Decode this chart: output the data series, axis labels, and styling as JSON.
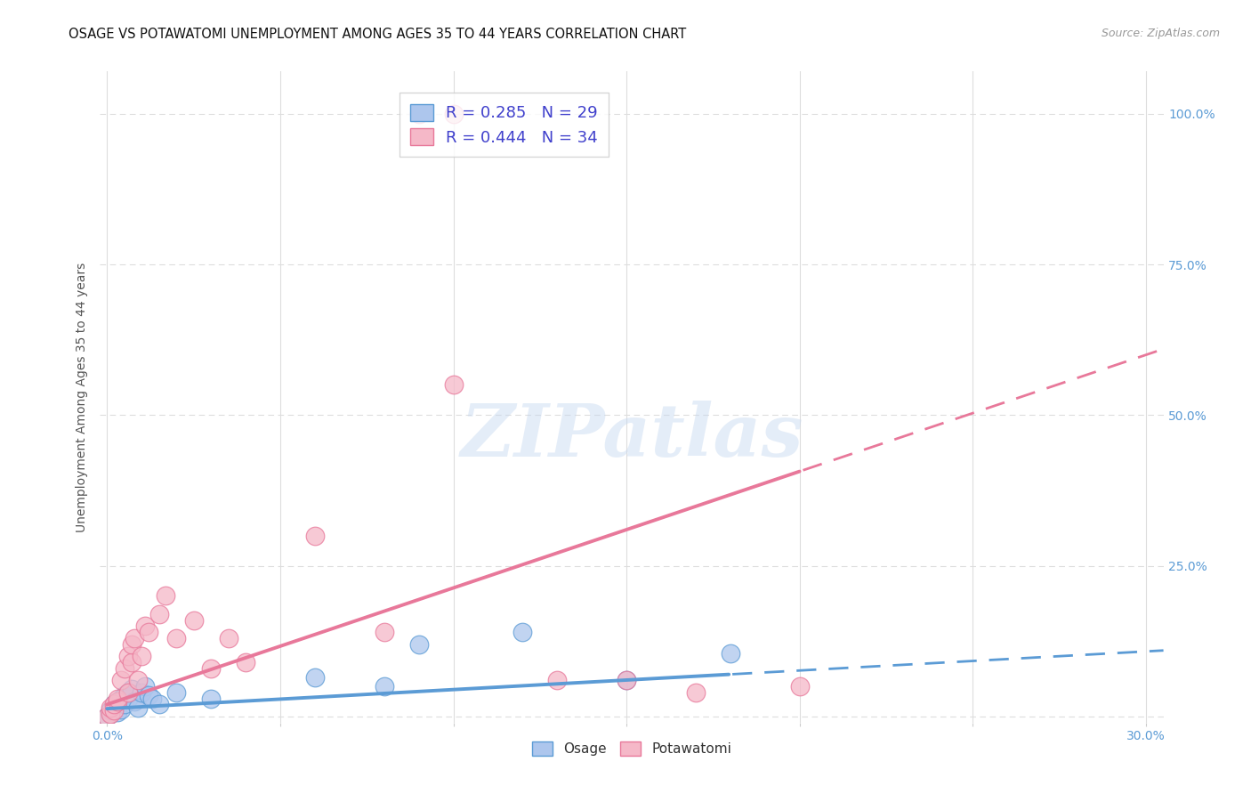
{
  "title": "OSAGE VS POTAWATOMI UNEMPLOYMENT AMONG AGES 35 TO 44 YEARS CORRELATION CHART",
  "source": "Source: ZipAtlas.com",
  "ylabel": "Unemployment Among Ages 35 to 44 years",
  "xlim": [
    -0.002,
    0.305
  ],
  "ylim": [
    -0.01,
    1.07
  ],
  "xticks": [
    0.0,
    0.05,
    0.1,
    0.15,
    0.2,
    0.25,
    0.3
  ],
  "xticklabels": [
    "0.0%",
    "",
    "",
    "",
    "",
    "",
    "30.0%"
  ],
  "yticks": [
    0.0,
    0.25,
    0.5,
    0.75,
    1.0
  ],
  "yticklabels": [
    "",
    "25.0%",
    "50.0%",
    "75.0%",
    "100.0%"
  ],
  "osage_color": "#adc6ed",
  "potawatomi_color": "#f5b8c8",
  "osage_line_color": "#5b9bd5",
  "potawatomi_line_color": "#e8789a",
  "osage_R": 0.285,
  "osage_N": 29,
  "potawatomi_R": 0.444,
  "potawatomi_N": 34,
  "legend_color": "#4040cc",
  "watermark_text": "ZIPatlas",
  "background_color": "#ffffff",
  "grid_color": "#dddddd",
  "osage_x": [
    0.0,
    0.001,
    0.001,
    0.002,
    0.002,
    0.003,
    0.003,
    0.004,
    0.004,
    0.005,
    0.005,
    0.006,
    0.006,
    0.007,
    0.008,
    0.009,
    0.01,
    0.011,
    0.012,
    0.013,
    0.015,
    0.02,
    0.03,
    0.06,
    0.08,
    0.09,
    0.12,
    0.15,
    0.18
  ],
  "osage_y": [
    0.0,
    0.005,
    0.01,
    0.015,
    0.02,
    0.008,
    0.025,
    0.012,
    0.03,
    0.02,
    0.035,
    0.03,
    0.04,
    0.045,
    0.025,
    0.015,
    0.04,
    0.05,
    0.035,
    0.03,
    0.02,
    0.04,
    0.03,
    0.065,
    0.05,
    0.12,
    0.14,
    0.06,
    0.105
  ],
  "potawatomi_x": [
    0.0,
    0.001,
    0.001,
    0.002,
    0.002,
    0.003,
    0.003,
    0.004,
    0.005,
    0.006,
    0.006,
    0.007,
    0.007,
    0.008,
    0.009,
    0.01,
    0.011,
    0.012,
    0.015,
    0.017,
    0.02,
    0.025,
    0.03,
    0.035,
    0.04,
    0.06,
    0.08,
    0.1,
    0.13,
    0.15,
    0.17,
    0.2,
    0.1,
    0.09
  ],
  "potawatomi_y": [
    0.0,
    0.005,
    0.015,
    0.01,
    0.02,
    0.025,
    0.03,
    0.06,
    0.08,
    0.04,
    0.1,
    0.09,
    0.12,
    0.13,
    0.06,
    0.1,
    0.15,
    0.14,
    0.17,
    0.2,
    0.13,
    0.16,
    0.08,
    0.13,
    0.09,
    0.3,
    0.14,
    0.55,
    0.06,
    0.06,
    0.04,
    0.05,
    1.0,
    1.0
  ],
  "osage_line_x0": 0.0,
  "osage_line_y0": 0.013,
  "osage_line_x1": 0.18,
  "osage_line_y1": 0.07,
  "potawatomi_line_x0": 0.0,
  "potawatomi_line_y0": 0.02,
  "potawatomi_line_x1": 0.3,
  "potawatomi_line_y1": 0.6
}
